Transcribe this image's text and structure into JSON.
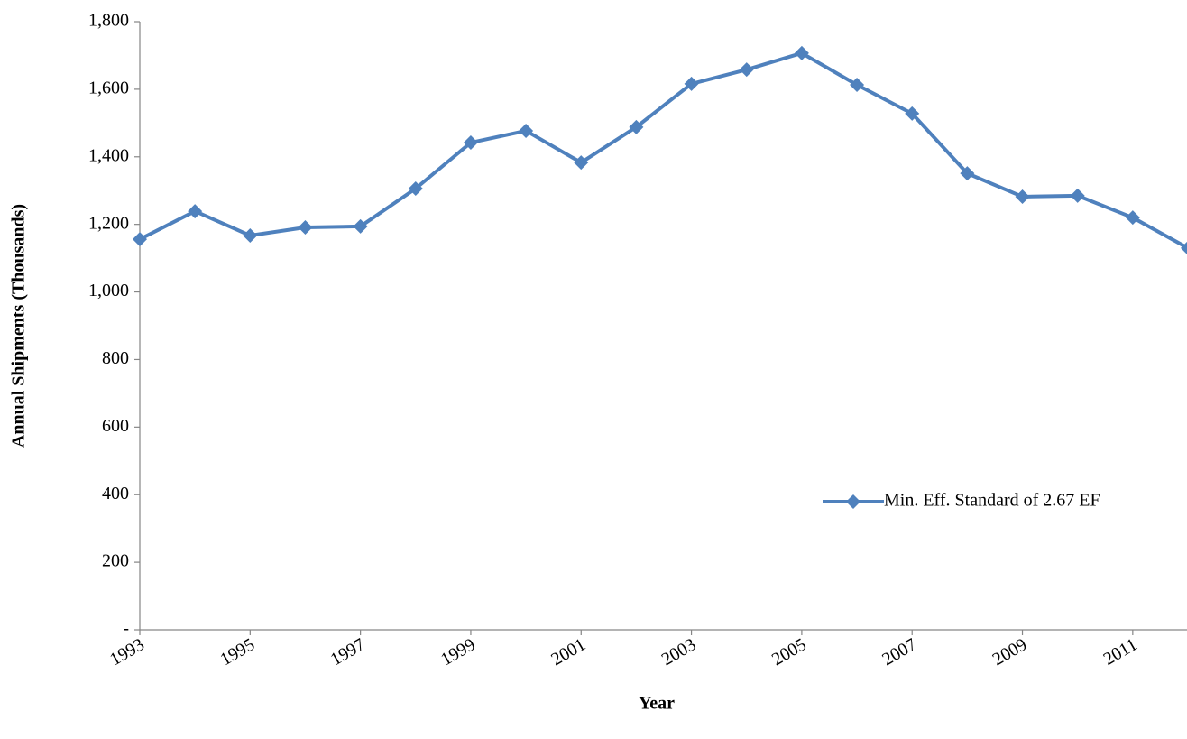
{
  "chart_data": {
    "type": "line",
    "x_label": "Year",
    "y_label": "Annual Shipments (Thousands)",
    "x": [
      1993,
      1994,
      1995,
      1996,
      1997,
      1998,
      1999,
      2000,
      2001,
      2002,
      2003,
      2004,
      2005,
      2006,
      2007,
      2008,
      2009,
      2010,
      2011,
      2012
    ],
    "series": [
      {
        "name": "Min. Eff. Standard of 2.67 EF",
        "color": "#4f81bd",
        "values": [
          1156,
          1239,
          1167,
          1191,
          1194,
          1306,
          1442,
          1477,
          1383,
          1488,
          1616,
          1658,
          1707,
          1613,
          1528,
          1351,
          1282,
          1285,
          1220,
          1130
        ]
      }
    ],
    "xlim": [
      1993,
      2012
    ],
    "xticks": [
      1993,
      1995,
      1997,
      1999,
      2001,
      2003,
      2005,
      2007,
      2009,
      2011
    ],
    "ylim": [
      0,
      1800
    ],
    "yticks": [
      {
        "value": 0,
        "label": "-"
      },
      {
        "value": 200,
        "label": "200"
      },
      {
        "value": 400,
        "label": "400"
      },
      {
        "value": 600,
        "label": "600"
      },
      {
        "value": 800,
        "label": "800"
      },
      {
        "value": 1000,
        "label": "1,000"
      },
      {
        "value": 1200,
        "label": "1,200"
      },
      {
        "value": 1400,
        "label": "1,400"
      },
      {
        "value": 1600,
        "label": "1,600"
      },
      {
        "value": 1800,
        "label": "1,800"
      }
    ],
    "grid": false,
    "legend": "right"
  }
}
